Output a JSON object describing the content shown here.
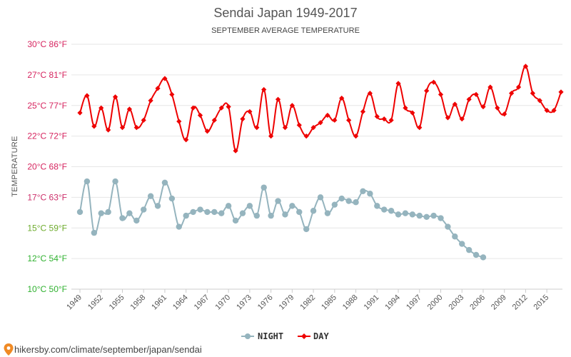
{
  "colors": {
    "day": "#ee0000",
    "night": "#95b4be",
    "grid": "#e6e6e6",
    "axis": "#cccccc"
  },
  "chart_data": {
    "type": "line",
    "title": "Sendai Japan 1949-2017",
    "subtitle": "SEPTEMBER AVERAGE TEMPERATURE",
    "ylabel": "TEMPERATURE",
    "xlabel": "",
    "ylim": [
      10,
      30
    ],
    "xlim": [
      1949,
      2017
    ],
    "legend_position": "bottom-center",
    "y_ticks": [
      {
        "value": 10,
        "label": "10°C 50°F",
        "color": "#2fb12f"
      },
      {
        "value": 12.5,
        "label": "12°C 54°F",
        "color": "#2fb12f"
      },
      {
        "value": 15,
        "label": "15°C 59°F",
        "color": "#6dab2c"
      },
      {
        "value": 17.5,
        "label": "17°C 63°F",
        "color": "#cc2f6a"
      },
      {
        "value": 20,
        "label": "20°C 68°F",
        "color": "#d6245f"
      },
      {
        "value": 22.5,
        "label": "22°C 72°F",
        "color": "#d6245f"
      },
      {
        "value": 25,
        "label": "25°C 77°F",
        "color": "#d6245f"
      },
      {
        "value": 27.5,
        "label": "27°C 81°F",
        "color": "#d6245f"
      },
      {
        "value": 30,
        "label": "30°C 86°F",
        "color": "#d6245f"
      }
    ],
    "x_ticks": [
      1949,
      1952,
      1955,
      1958,
      1961,
      1964,
      1967,
      1970,
      1973,
      1976,
      1979,
      1982,
      1985,
      1988,
      1991,
      1994,
      1997,
      2000,
      2003,
      2006,
      2009,
      2012,
      2015
    ],
    "series": [
      {
        "name": "NIGHT",
        "marker": "circle",
        "x": [
          1949,
          1950,
          1951,
          1952,
          1953,
          1954,
          1955,
          1956,
          1957,
          1958,
          1959,
          1960,
          1961,
          1962,
          1963,
          1964,
          1965,
          1966,
          1967,
          1968,
          1969,
          1970,
          1971,
          1972,
          1973,
          1974,
          1975,
          1976,
          1977,
          1978,
          1979,
          1980,
          1981,
          1982,
          1983,
          1984,
          1985,
          1986,
          1987,
          1988,
          1989,
          1990,
          1991,
          1992,
          1993,
          1994,
          1995,
          1996,
          1997,
          1998,
          1999,
          2000,
          2001,
          2002,
          2003,
          2004,
          2005,
          2006
        ],
        "values": [
          16.3,
          18.8,
          14.6,
          16.2,
          16.3,
          18.8,
          15.8,
          16.2,
          15.6,
          16.5,
          17.6,
          16.8,
          18.7,
          17.4,
          15.1,
          16.0,
          16.3,
          16.5,
          16.3,
          16.3,
          16.2,
          16.8,
          15.6,
          16.2,
          16.8,
          16.0,
          18.3,
          16.0,
          17.2,
          16.1,
          16.8,
          16.3,
          14.9,
          16.4,
          17.5,
          16.2,
          16.9,
          17.4,
          17.2,
          17.1,
          18.0,
          17.8,
          16.8,
          16.5,
          16.4,
          16.1,
          16.2,
          16.1,
          16.0,
          15.9,
          16.0,
          15.8,
          15.1,
          14.3,
          13.7,
          13.2,
          12.8,
          12.6
        ]
      },
      {
        "name": "DAY",
        "marker": "diamond",
        "x": [
          1949,
          1950,
          1951,
          1952,
          1953,
          1954,
          1955,
          1956,
          1957,
          1958,
          1959,
          1960,
          1961,
          1962,
          1963,
          1964,
          1965,
          1966,
          1967,
          1968,
          1969,
          1970,
          1971,
          1972,
          1973,
          1974,
          1975,
          1976,
          1977,
          1978,
          1979,
          1980,
          1981,
          1982,
          1983,
          1984,
          1985,
          1986,
          1987,
          1988,
          1989,
          1990,
          1991,
          1992,
          1993,
          1994,
          1995,
          1996,
          1997,
          1998,
          1999,
          2000,
          2001,
          2002,
          2003,
          2004,
          2005,
          2006,
          2007,
          2008,
          2009,
          2010,
          2011,
          2012,
          2013,
          2014,
          2015,
          2016,
          2017
        ],
        "values": [
          24.4,
          25.8,
          23.3,
          24.8,
          23.0,
          25.7,
          23.2,
          24.7,
          23.2,
          23.8,
          25.4,
          26.4,
          27.2,
          25.9,
          23.7,
          22.2,
          24.8,
          24.2,
          22.9,
          23.8,
          24.8,
          24.9,
          21.3,
          23.9,
          24.5,
          23.2,
          26.3,
          22.5,
          25.5,
          23.2,
          25.0,
          23.4,
          22.5,
          23.2,
          23.6,
          24.2,
          23.8,
          25.6,
          23.8,
          22.5,
          24.5,
          26.0,
          24.1,
          23.9,
          23.8,
          26.8,
          24.8,
          24.4,
          23.2,
          26.2,
          26.9,
          25.9,
          24.0,
          25.1,
          23.9,
          25.5,
          25.9,
          24.9,
          26.5,
          24.8,
          24.3,
          26.0,
          26.5,
          28.2,
          26.0,
          25.4,
          24.6,
          24.6,
          26.1
        ]
      }
    ]
  },
  "source_text": "hikersby.com/climate/september/japan/sendai"
}
